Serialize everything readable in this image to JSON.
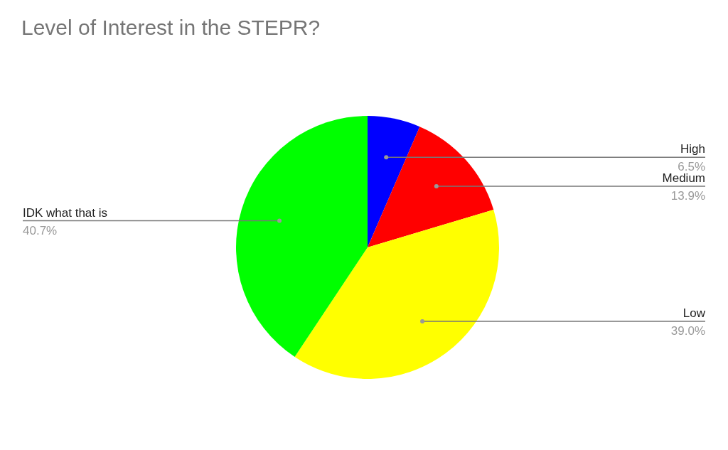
{
  "chart_data": {
    "type": "pie",
    "title": "Level of Interest in the STEPR?",
    "categories": [
      "High",
      "Medium",
      "Low",
      "IDK what that is"
    ],
    "values": [
      6.5,
      13.9,
      39.0,
      40.7
    ],
    "value_labels": [
      "6.5%",
      "13.9%",
      "39.0%",
      "40.7%"
    ],
    "colors": [
      "#0000ff",
      "#ff0000",
      "#ffff00",
      "#00ff00"
    ]
  }
}
